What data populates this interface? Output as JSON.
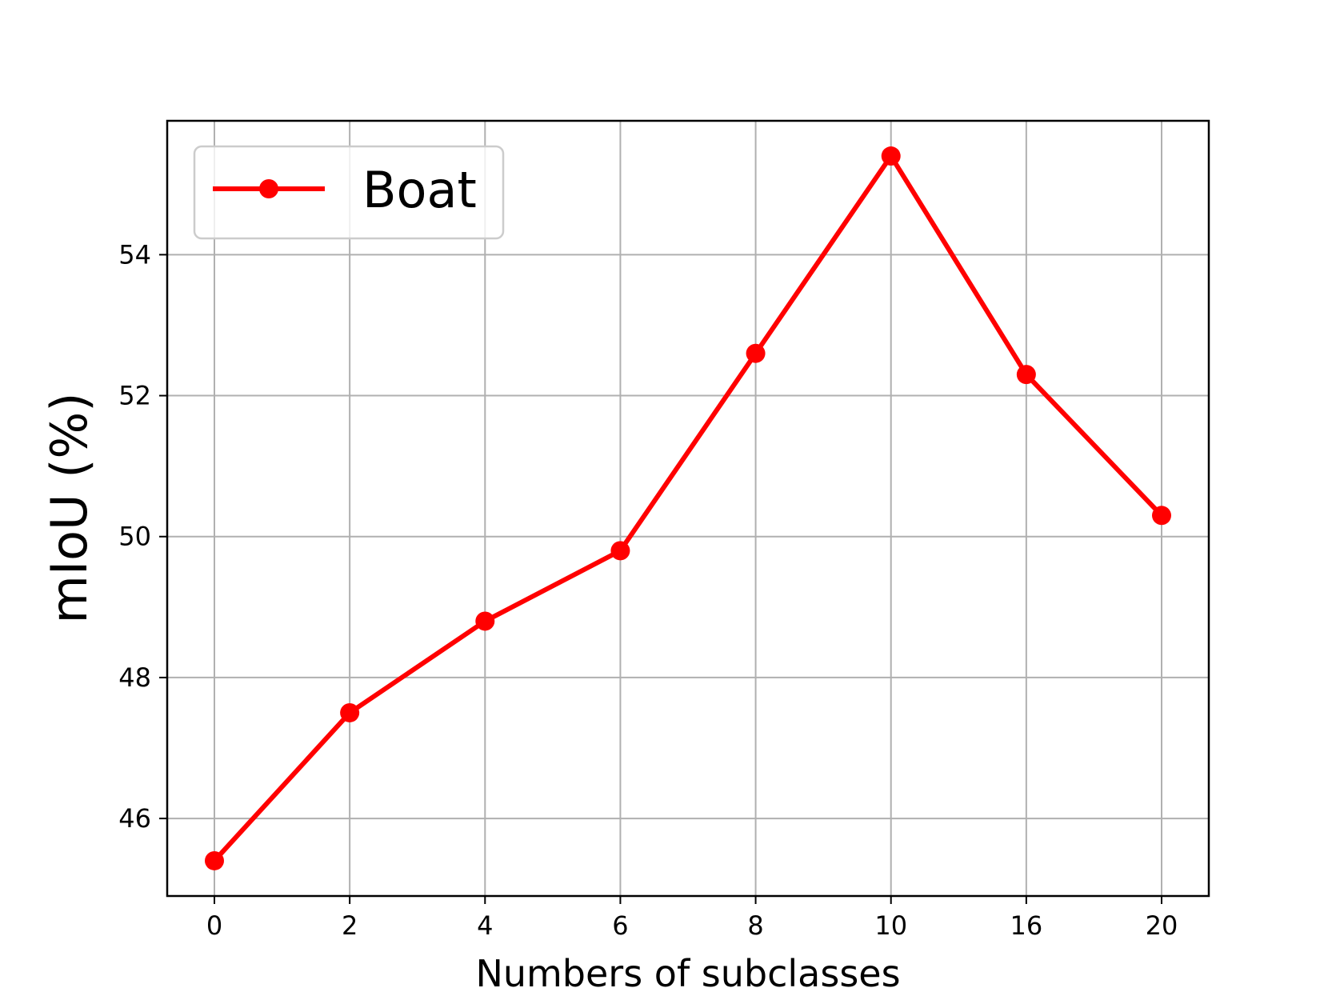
{
  "chart_data": {
    "type": "line",
    "title": "",
    "xlabel": "Numbers of subclasses",
    "ylabel": "mIoU (%)",
    "categories": [
      "0",
      "2",
      "4",
      "6",
      "8",
      "10",
      "16",
      "20"
    ],
    "series": [
      {
        "name": "Boat",
        "color": "#ff0000",
        "marker": "circle",
        "values": [
          45.4,
          47.5,
          48.8,
          49.8,
          52.6,
          55.4,
          52.3,
          50.3
        ]
      }
    ],
    "ylim": [
      44.9,
      55.9
    ],
    "yticks": [
      "46",
      "48",
      "50",
      "52",
      "54"
    ],
    "grid": true,
    "legend_position": "upper-left"
  }
}
